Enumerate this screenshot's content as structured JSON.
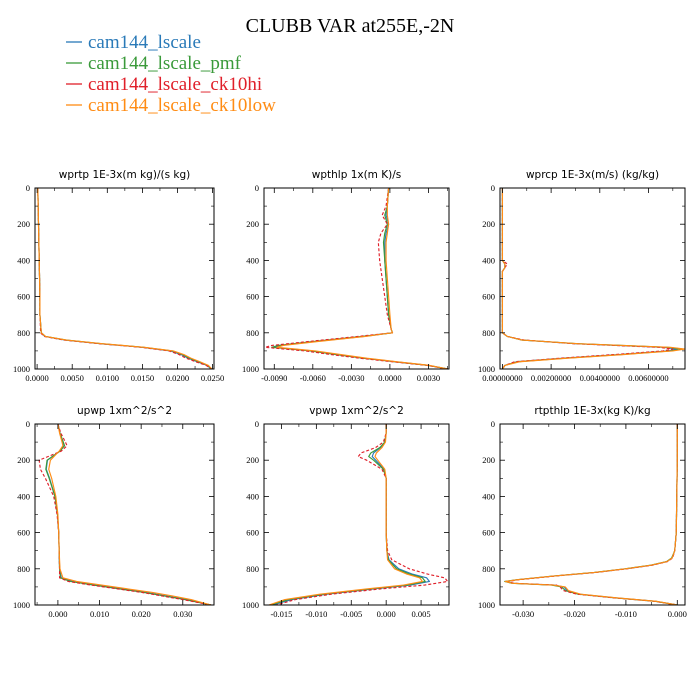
{
  "title": "CLUBB VAR at255E,-2N",
  "legend": [
    {
      "name": "cam144_lscale",
      "color": "#2a7ab8"
    },
    {
      "name": "cam144_lscale_pmf",
      "color": "#3a9a3a"
    },
    {
      "name": "cam144_lscale_ck10hi",
      "color": "#e0202a"
    },
    {
      "name": "cam144_lscale_ck10low",
      "color": "#ff8c14"
    }
  ],
  "chart_data": [
    {
      "type": "line",
      "title": "wprtp  1E-3x(m kg)/(s kg)",
      "xlim": [
        -0.0003,
        0.0252
      ],
      "ylim": [
        0,
        1000
      ],
      "y_inverted": true,
      "xticks": [
        0.0,
        0.005,
        0.01,
        0.015,
        0.02,
        0.025
      ],
      "xtick_labels": [
        "0.0000",
        "0.0050",
        "0.0100",
        "0.0150",
        "0.0200",
        "0.0250"
      ],
      "yticks": [
        0,
        200,
        400,
        600,
        800,
        1000
      ],
      "ytick_labels": [
        "0",
        "200",
        "400",
        "600",
        "800",
        "1000"
      ],
      "y": [
        0,
        200,
        400,
        600,
        700,
        800,
        820,
        840,
        860,
        880,
        900,
        920,
        940,
        960,
        980,
        1000
      ],
      "series": [
        {
          "name": "cam144_lscale",
          "values": [
            0.0001,
            0.0002,
            0.0003,
            0.0004,
            0.0004,
            0.0006,
            0.0011,
            0.004,
            0.009,
            0.015,
            0.019,
            0.0205,
            0.0215,
            0.0228,
            0.0242,
            0.0248
          ]
        },
        {
          "name": "cam144_lscale_pmf",
          "values": [
            0.0001,
            0.0002,
            0.0003,
            0.0004,
            0.0004,
            0.0006,
            0.0012,
            0.0042,
            0.0092,
            0.0152,
            0.0193,
            0.0207,
            0.0217,
            0.023,
            0.0243,
            0.0249
          ]
        },
        {
          "name": "cam144_lscale_ck10hi",
          "values": [
            0.0001,
            0.0002,
            0.0003,
            0.0004,
            0.0004,
            0.0005,
            0.001,
            0.0038,
            0.0088,
            0.0148,
            0.0188,
            0.0202,
            0.0212,
            0.0226,
            0.0241,
            0.0248
          ]
        },
        {
          "name": "cam144_lscale_ck10low",
          "values": [
            0.0001,
            0.0002,
            0.0003,
            0.0004,
            0.0004,
            0.0006,
            0.0012,
            0.0042,
            0.0093,
            0.0153,
            0.0194,
            0.0209,
            0.0219,
            0.0232,
            0.0244,
            0.0249
          ]
        }
      ]
    },
    {
      "type": "line",
      "title": "wpthlp  1x(m K)/s",
      "xlim": [
        -0.0098,
        0.0046
      ],
      "ylim": [
        0,
        1000
      ],
      "y_inverted": true,
      "xticks": [
        -0.009,
        -0.006,
        -0.003,
        0.0,
        0.003
      ],
      "xtick_labels": [
        "-0.0090",
        "-0.0060",
        "-0.0030",
        "0.0000",
        "0.0030"
      ],
      "yticks": [
        0,
        200,
        400,
        600,
        800,
        1000
      ],
      "ytick_labels": [
        "0",
        "200",
        "400",
        "600",
        "800",
        "1000"
      ],
      "y": [
        0,
        100,
        150,
        200,
        250,
        300,
        400,
        500,
        600,
        700,
        780,
        800,
        820,
        850,
        870,
        880,
        890,
        900,
        920,
        940,
        960,
        980,
        1000
      ],
      "series": [
        {
          "name": "cam144_lscale",
          "values": [
            -0.0001,
            -0.0002,
            -0.0003,
            -0.0001,
            -0.0003,
            -0.0004,
            -0.0004,
            -0.0003,
            -0.0002,
            -0.0001,
            0.0001,
            0.0002,
            -0.002,
            -0.006,
            -0.0085,
            -0.009,
            -0.0075,
            -0.006,
            -0.004,
            -0.002,
            0.0005,
            0.003,
            0.0045
          ]
        },
        {
          "name": "cam144_lscale_pmf",
          "values": [
            -0.0001,
            -0.0002,
            -0.0004,
            -0.0002,
            -0.0004,
            -0.0005,
            -0.0004,
            -0.0003,
            -0.0002,
            -0.0001,
            0.0001,
            0.0002,
            -0.0022,
            -0.0062,
            -0.0087,
            -0.0092,
            -0.0077,
            -0.0062,
            -0.0042,
            -0.0021,
            0.0004,
            0.003,
            0.0045
          ]
        },
        {
          "name": "cam144_lscale_ck10hi",
          "values": [
            -0.0001,
            -0.0003,
            -0.0006,
            -0.0002,
            -0.0007,
            -0.0009,
            -0.0008,
            -0.0006,
            -0.0004,
            -0.0002,
            0.0001,
            0.0002,
            -0.0025,
            -0.0066,
            -0.0092,
            -0.0097,
            -0.0082,
            -0.0066,
            -0.0046,
            -0.0024,
            0.0002,
            0.0029,
            0.0045
          ]
        },
        {
          "name": "cam144_lscale_ck10low",
          "values": [
            -0.0001,
            -0.0002,
            -0.0002,
            -0.0001,
            -0.0002,
            -0.0003,
            -0.0003,
            -0.0002,
            -0.0001,
            0.0,
            0.0001,
            0.0002,
            -0.0019,
            -0.0058,
            -0.0083,
            -0.0088,
            -0.0073,
            -0.0058,
            -0.0038,
            -0.0018,
            0.0006,
            0.0031,
            0.0045
          ]
        }
      ]
    },
    {
      "type": "line",
      "title": "wprcp  1E-3x(m/s) (kg/kg)",
      "xlim": [
        -0.0001,
        0.0075
      ],
      "ylim": [
        0,
        1000
      ],
      "y_inverted": true,
      "xticks": [
        0.0,
        0.002,
        0.004,
        0.006
      ],
      "xtick_labels": [
        "0.00000000",
        "0.00200000",
        "0.00400000",
        "0.00600000"
      ],
      "yticks": [
        0,
        200,
        400,
        600,
        800,
        1000
      ],
      "ytick_labels": [
        "0",
        "200",
        "400",
        "600",
        "800",
        "1000"
      ],
      "y": [
        0,
        400,
        420,
        440,
        460,
        500,
        700,
        800,
        820,
        840,
        860,
        880,
        890,
        900,
        920,
        940,
        960,
        980,
        1000
      ],
      "series": [
        {
          "name": "cam144_lscale",
          "values": [
            0.0,
            0.0,
            0.0001,
            0.0001,
            0.0,
            0.0,
            0.0,
            0.0,
            0.0002,
            0.0008,
            0.003,
            0.0066,
            0.0072,
            0.0068,
            0.0048,
            0.0025,
            0.0006,
            0.0001,
            0.0
          ]
        },
        {
          "name": "cam144_lscale_pmf",
          "values": [
            0.0,
            0.0,
            0.0001,
            0.0001,
            0.0,
            0.0,
            0.0,
            0.0,
            0.0002,
            0.0008,
            0.0031,
            0.0068,
            0.0074,
            0.0069,
            0.0049,
            0.0026,
            0.0006,
            0.0001,
            0.0
          ]
        },
        {
          "name": "cam144_lscale_ck10hi",
          "values": [
            0.0,
            0.0,
            0.0002,
            0.0001,
            0.0,
            0.0,
            0.0,
            0.0,
            0.0002,
            0.0009,
            0.0029,
            0.0064,
            0.007,
            0.0066,
            0.0046,
            0.0024,
            0.0005,
            0.0001,
            0.0
          ]
        },
        {
          "name": "cam144_lscale_ck10low",
          "values": [
            0.0,
            0.0,
            0.0001,
            0.0001,
            0.0,
            0.0,
            0.0,
            0.0,
            0.0002,
            0.0008,
            0.0031,
            0.0069,
            0.0075,
            0.007,
            0.005,
            0.0027,
            0.0007,
            0.0001,
            0.0
          ]
        }
      ]
    },
    {
      "type": "line",
      "title": "upwp   1xm^2/s^2",
      "xlim": [
        -0.0055,
        0.0375
      ],
      "ylim": [
        0,
        1000
      ],
      "y_inverted": true,
      "xticks": [
        0.0,
        0.01,
        0.02,
        0.03
      ],
      "xtick_labels": [
        "0.000",
        "0.010",
        "0.020",
        "0.030"
      ],
      "yticks": [
        0,
        200,
        400,
        600,
        800,
        1000
      ],
      "ytick_labels": [
        "0",
        "200",
        "400",
        "600",
        "800",
        "1000"
      ],
      "y": [
        0,
        50,
        100,
        120,
        150,
        200,
        250,
        300,
        400,
        500,
        600,
        700,
        800,
        850,
        870,
        890,
        910,
        930,
        950,
        970,
        1000
      ],
      "series": [
        {
          "name": "cam144_lscale",
          "values": [
            0.0,
            0.0005,
            0.0012,
            0.0015,
            0.0005,
            -0.0025,
            -0.0028,
            -0.002,
            -0.0007,
            -0.0001,
            0.0002,
            0.0003,
            0.0004,
            0.0008,
            0.0035,
            0.009,
            0.015,
            0.021,
            0.026,
            0.031,
            0.0368
          ]
        },
        {
          "name": "cam144_lscale_pmf",
          "values": [
            0.0,
            0.0005,
            0.0013,
            0.0016,
            0.0005,
            -0.0026,
            -0.0029,
            -0.0021,
            -0.0007,
            -0.0001,
            0.0002,
            0.0003,
            0.0004,
            0.0006,
            0.003,
            0.0085,
            0.0145,
            0.0205,
            0.0255,
            0.0305,
            0.0368
          ]
        },
        {
          "name": "cam144_lscale_ck10hi",
          "values": [
            0.0,
            0.0007,
            0.0018,
            0.0022,
            0.0008,
            -0.0045,
            -0.0042,
            -0.003,
            -0.001,
            -0.0002,
            0.0002,
            0.0003,
            0.0004,
            0.0004,
            0.0025,
            0.008,
            0.014,
            0.02,
            0.025,
            0.03,
            0.0368
          ]
        },
        {
          "name": "cam144_lscale_ck10low",
          "values": [
            0.0,
            0.0004,
            0.001,
            0.0012,
            0.0003,
            -0.0018,
            -0.0022,
            -0.0015,
            -0.0005,
            0.0,
            0.0002,
            0.0003,
            0.0005,
            0.0012,
            0.0045,
            0.0105,
            0.0165,
            0.0225,
            0.0275,
            0.032,
            0.0368
          ]
        }
      ]
    },
    {
      "type": "line",
      "title": "vpwp   1xm^2/s^2",
      "xlim": [
        -0.0175,
        0.009
      ],
      "ylim": [
        0,
        1000
      ],
      "y_inverted": true,
      "xticks": [
        -0.015,
        -0.01,
        -0.005,
        0.0,
        0.005
      ],
      "xtick_labels": [
        "-0.015",
        "-0.010",
        "-0.005",
        "0.000",
        "0.005"
      ],
      "yticks": [
        0,
        200,
        400,
        600,
        800,
        1000
      ],
      "ytick_labels": [
        "0",
        "200",
        "400",
        "600",
        "800",
        "1000"
      ],
      "y": [
        0,
        50,
        100,
        130,
        160,
        180,
        200,
        250,
        300,
        400,
        500,
        600,
        700,
        750,
        800,
        830,
        850,
        870,
        890,
        910,
        940,
        970,
        1000
      ],
      "series": [
        {
          "name": "cam144_lscale",
          "values": [
            0.0,
            0.0,
            -0.0002,
            -0.0008,
            -0.0018,
            -0.002,
            -0.0015,
            -0.0003,
            0.0,
            0.0,
            0.0,
            0.0,
            0.0001,
            0.0004,
            0.0018,
            0.0038,
            0.0058,
            0.0062,
            0.0035,
            -0.0015,
            -0.0085,
            -0.0135,
            -0.0163
          ]
        },
        {
          "name": "cam144_lscale_pmf",
          "values": [
            0.0,
            0.0,
            -0.0002,
            -0.0009,
            -0.0022,
            -0.0025,
            -0.0018,
            -0.0004,
            0.0,
            0.0,
            0.0,
            0.0,
            0.0001,
            0.0003,
            0.0015,
            0.0034,
            0.0052,
            0.0056,
            0.003,
            -0.002,
            -0.009,
            -0.014,
            -0.0166
          ]
        },
        {
          "name": "cam144_lscale_ck10hi",
          "values": [
            0.0,
            0.0,
            -0.0004,
            -0.0015,
            -0.0036,
            -0.004,
            -0.0028,
            -0.0006,
            0.0,
            0.0,
            0.0,
            0.0,
            0.0002,
            0.0008,
            0.0033,
            0.006,
            0.0084,
            0.0088,
            0.0055,
            -0.0005,
            -0.0078,
            -0.013,
            -0.0158
          ]
        },
        {
          "name": "cam144_lscale_ck10low",
          "values": [
            0.0,
            0.0,
            -0.0001,
            -0.0006,
            -0.0014,
            -0.0016,
            -0.0012,
            -0.0002,
            0.0,
            0.0,
            0.0,
            0.0,
            0.0001,
            0.0002,
            0.0012,
            0.003,
            0.0048,
            0.0052,
            0.0025,
            -0.0025,
            -0.0095,
            -0.0145,
            -0.0168
          ]
        }
      ]
    },
    {
      "type": "line",
      "title": "rtpthlp   1E-3x(kg K)/kg",
      "xlim": [
        -0.0345,
        0.0015
      ],
      "ylim": [
        0,
        1000
      ],
      "y_inverted": true,
      "xticks": [
        -0.03,
        -0.02,
        -0.01,
        0.0
      ],
      "xtick_labels": [
        "-0.030",
        "-0.020",
        "-0.010",
        "0.000"
      ],
      "yticks": [
        0,
        200,
        400,
        600,
        800,
        1000
      ],
      "ytick_labels": [
        "0",
        "200",
        "400",
        "600",
        "800",
        "1000"
      ],
      "y": [
        0,
        200,
        400,
        600,
        700,
        740,
        760,
        780,
        800,
        820,
        840,
        860,
        870,
        880,
        890,
        900,
        920,
        940,
        960,
        980,
        1000
      ],
      "series": [
        {
          "name": "cam144_lscale",
          "values": [
            0.0,
            0.0,
            -0.0001,
            -0.0002,
            -0.0005,
            -0.001,
            -0.002,
            -0.005,
            -0.01,
            -0.016,
            -0.024,
            -0.031,
            -0.0333,
            -0.032,
            -0.024,
            -0.022,
            -0.0215,
            -0.019,
            -0.012,
            -0.004,
            0.0
          ]
        },
        {
          "name": "cam144_lscale_pmf",
          "values": [
            0.0,
            0.0,
            -0.0001,
            -0.0002,
            -0.0005,
            -0.0011,
            -0.0021,
            -0.0052,
            -0.0102,
            -0.0162,
            -0.0242,
            -0.0312,
            -0.0336,
            -0.0322,
            -0.0245,
            -0.0225,
            -0.0218,
            -0.0193,
            -0.0123,
            -0.0042,
            0.0
          ]
        },
        {
          "name": "cam144_lscale_ck10hi",
          "values": [
            0.0,
            0.0,
            -0.0001,
            -0.0002,
            -0.0005,
            -0.0009,
            -0.0019,
            -0.0048,
            -0.0098,
            -0.0158,
            -0.0238,
            -0.0308,
            -0.033,
            -0.0318,
            -0.0235,
            -0.0228,
            -0.0222,
            -0.0196,
            -0.0125,
            -0.0043,
            0.0
          ]
        },
        {
          "name": "cam144_lscale_ck10low",
          "values": [
            0.0,
            0.0,
            -0.0001,
            -0.0002,
            -0.0005,
            -0.001,
            -0.002,
            -0.0051,
            -0.0101,
            -0.0161,
            -0.0241,
            -0.0311,
            -0.0335,
            -0.0321,
            -0.0242,
            -0.0218,
            -0.0212,
            -0.0188,
            -0.0118,
            -0.0039,
            0.0
          ]
        }
      ]
    }
  ]
}
